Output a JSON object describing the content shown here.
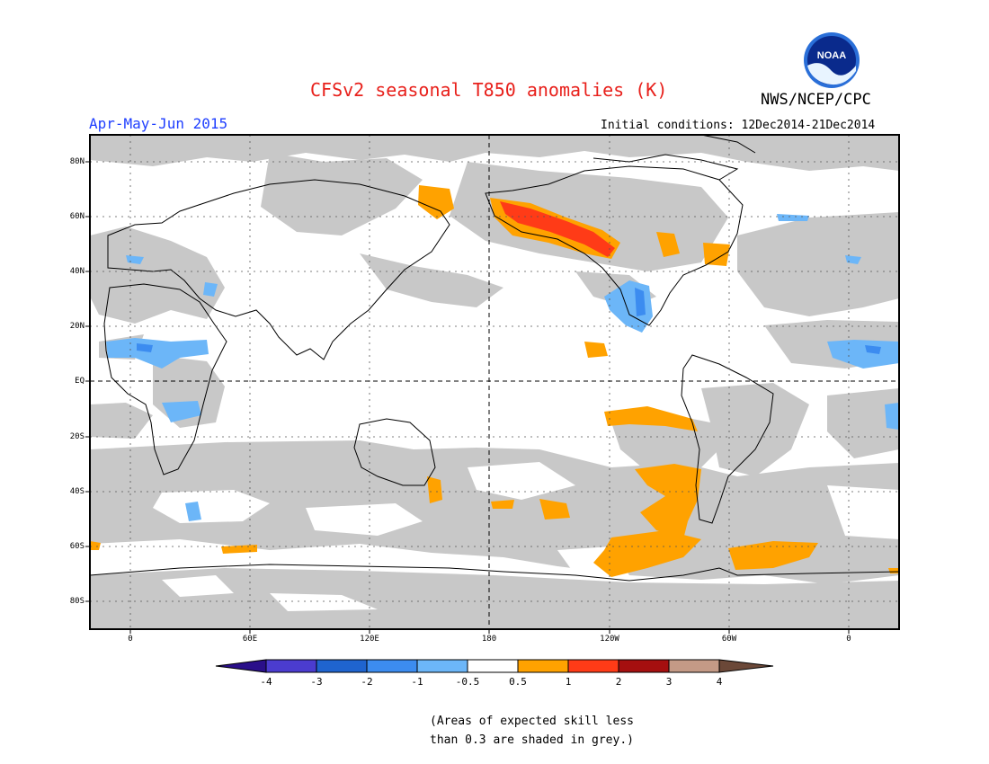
{
  "header": {
    "title": "CFSv2 seasonal T850 anomalies (K)",
    "organization": "NWS/NCEP/CPC",
    "logo_text": "NOAA",
    "season": "Apr-May-Jun 2015",
    "initial_conditions": "Initial conditions: 12Dec2014-21Dec2014"
  },
  "map": {
    "projection": "cylindrical equidistant",
    "center_longitude": "180",
    "lat_labels": [
      "80N",
      "60N",
      "40N",
      "20N",
      "EQ",
      "20S",
      "40S",
      "60S",
      "80S"
    ],
    "lon_labels": [
      "0",
      "60E",
      "120E",
      "180",
      "120W",
      "60W",
      "0"
    ],
    "colors": {
      "grey_low_skill": "#c8c8c8",
      "orange": "#ffa200",
      "red": "#ff3b17",
      "light_blue": "#6cb6f8",
      "mid_blue": "#3c8cf0"
    }
  },
  "colorbar": {
    "ticks": [
      "-4",
      "-3",
      "-2",
      "-1",
      "-0.5",
      "0.5",
      "1",
      "2",
      "3",
      "4"
    ],
    "colors": [
      "#2a0f8a",
      "#4b3ccf",
      "#1f64cf",
      "#3c8cf0",
      "#6cb6f8",
      "#ffffff",
      "#ffa200",
      "#ff3b17",
      "#a50f0f",
      "#c49a86",
      "#6b4838"
    ]
  },
  "note": {
    "line1": "(Areas of expected skill less",
    "line2": "than 0.3 are shaded in grey.)"
  }
}
